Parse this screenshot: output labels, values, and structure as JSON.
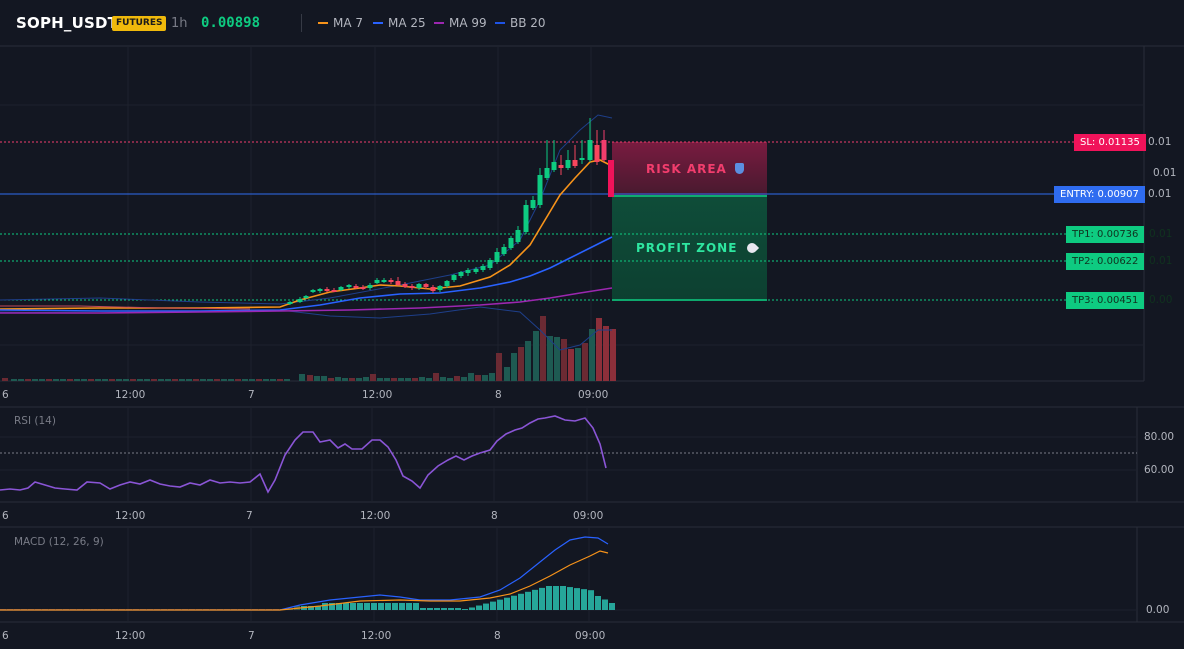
{
  "header": {
    "symbol": "SOPH_USDT",
    "badge": "FUTURES",
    "timeframe": "1h",
    "price": "0.00898",
    "legend": [
      {
        "label": "MA 7",
        "color": "#f7931a"
      },
      {
        "label": "MA 25",
        "color": "#2962ff"
      },
      {
        "label": "MA 99",
        "color": "#9c27b0"
      },
      {
        "label": "BB 20",
        "color": "#1e53e5"
      }
    ]
  },
  "levels": {
    "sl": "SL: 0.01135",
    "sl_axis": "0.01",
    "mid_axis": "0.01",
    "entry": "ENTRY: 0.00907",
    "entry_axis": "0.01",
    "tp1": "TP1: 0.00736",
    "tp1_axis": "0.01",
    "tp2": "TP2: 0.00622",
    "tp2_axis": "0.01",
    "tp3": "TP3: 0.00451",
    "tp3_axis": "0.00"
  },
  "zones": {
    "risk": "RISK AREA",
    "risk_icon": "shield-icon",
    "profit": "PROFIT ZONE",
    "profit_icon": "rocket-icon"
  },
  "time_axis": [
    "6",
    "12:00",
    "7",
    "12:00",
    "8",
    "09:00"
  ],
  "rsi": {
    "label": "RSI (14)",
    "ticks": [
      "80.00",
      "60.00"
    ]
  },
  "macd": {
    "label": "MACD (12, 26, 9)",
    "ticks": [
      "0.00"
    ]
  },
  "colors": {
    "up": "#0ecb81",
    "down": "#f6465d",
    "bg": "#131722",
    "grid": "#1e222d"
  }
}
